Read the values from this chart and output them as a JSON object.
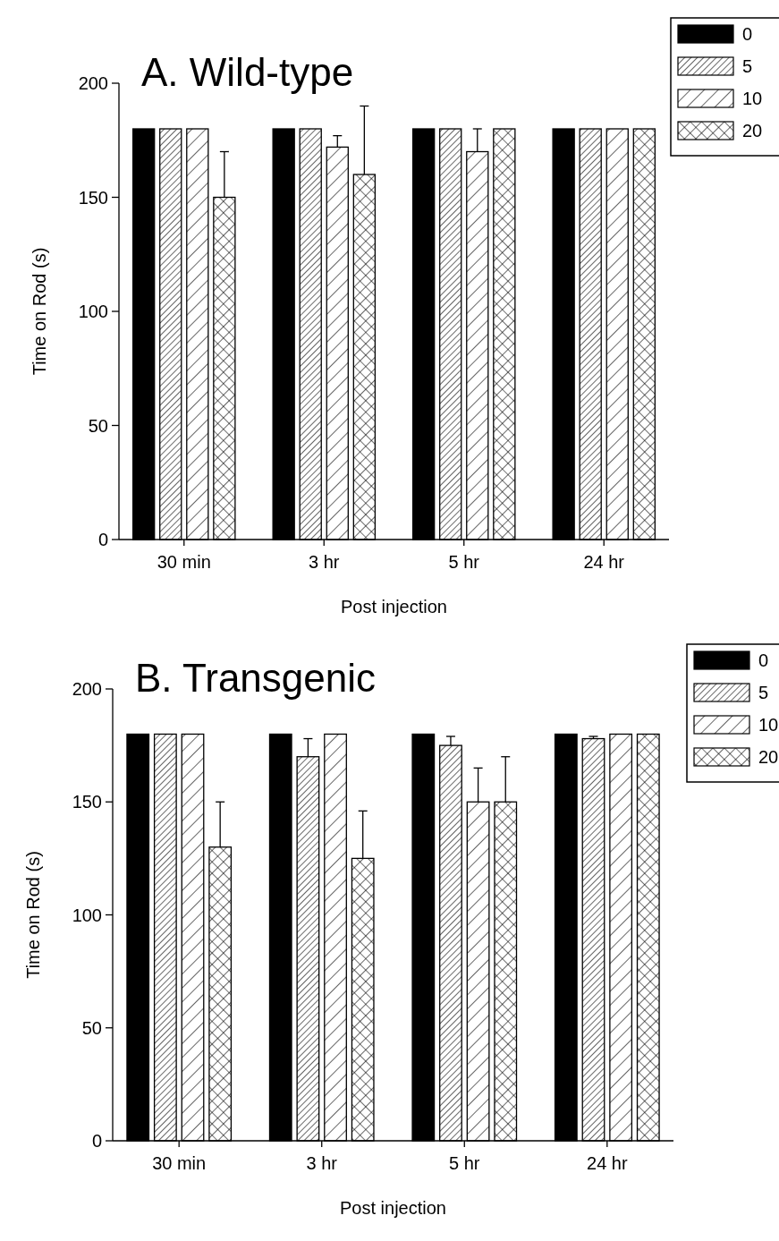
{
  "chart_data": [
    {
      "type": "bar",
      "title": "A. Wild-type",
      "xlabel": "Post injection",
      "ylabel": "Time on Rod (s)",
      "categories": [
        "30 min",
        "3 hr",
        "5 hr",
        "24 hr"
      ],
      "ylim": [
        0,
        200
      ],
      "yticks": [
        0,
        50,
        100,
        150,
        200
      ],
      "legend": "top right",
      "grid": false,
      "series": [
        {
          "name": "0",
          "color": "#000000",
          "values": [
            180,
            180,
            180,
            180
          ]
        },
        {
          "name": "5",
          "color": "#000000",
          "values": [
            180,
            180,
            180,
            180
          ]
        },
        {
          "name": "10",
          "color": "#000000",
          "values": [
            180,
            172,
            170,
            180
          ],
          "errors": [
            null,
            [
              172,
              177
            ],
            [
              170,
              180
            ],
            null
          ]
        },
        {
          "name": "20",
          "color": "#000000",
          "values": [
            150,
            160,
            180,
            180
          ],
          "errors": [
            [
              150,
              170
            ],
            [
              160,
              190
            ],
            null,
            null
          ]
        }
      ]
    },
    {
      "type": "bar",
      "title": "B. Transgenic",
      "xlabel": "Post injection",
      "ylabel": "Time on Rod (s)",
      "categories": [
        "30 min",
        "3 hr",
        "5 hr",
        "24 hr"
      ],
      "ylim": [
        0,
        200
      ],
      "yticks": [
        0,
        50,
        100,
        150,
        200
      ],
      "legend": "top right",
      "grid": false,
      "series": [
        {
          "name": "0",
          "color": "#000000",
          "values": [
            180,
            180,
            180,
            180
          ]
        },
        {
          "name": "5",
          "color": "#000000",
          "values": [
            180,
            170,
            175,
            178
          ],
          "errors": [
            null,
            [
              170,
              178
            ],
            [
              175,
              179
            ],
            [
              178,
              179
            ]
          ]
        },
        {
          "name": "10",
          "color": "#000000",
          "values": [
            180,
            180,
            150,
            180
          ],
          "errors": [
            null,
            null,
            [
              150,
              165
            ],
            null
          ]
        },
        {
          "name": "20",
          "color": "#000000",
          "values": [
            130,
            125,
            150,
            180
          ],
          "errors": [
            [
              130,
              150
            ],
            [
              125,
              146
            ],
            [
              150,
              170
            ],
            null
          ]
        }
      ]
    }
  ]
}
